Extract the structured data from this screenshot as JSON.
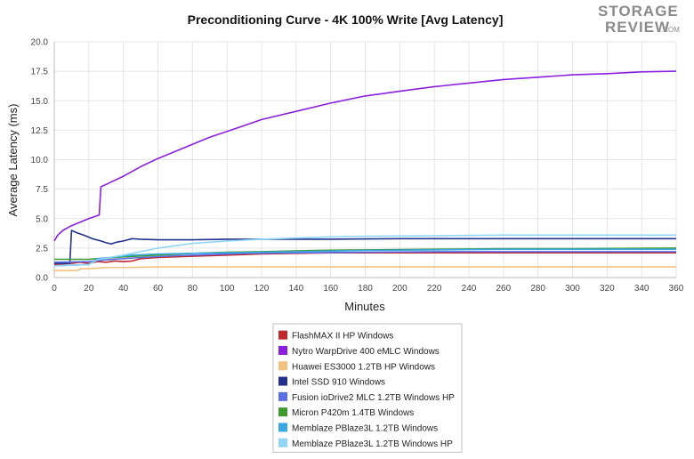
{
  "logo": {
    "line1": "STORAGE",
    "line2": "REVIEW",
    "suffix": ".COM"
  },
  "chart_data": {
    "type": "line",
    "title": "Preconditioning Curve - 4K 100% Write [Avg Latency]",
    "xlabel": "Minutes",
    "ylabel": "Average Latency (ms)",
    "xlim": [
      0,
      360
    ],
    "ylim": [
      0,
      20
    ],
    "xticks": [
      0,
      20,
      40,
      60,
      80,
      100,
      120,
      140,
      160,
      180,
      200,
      220,
      240,
      260,
      280,
      300,
      320,
      340,
      360
    ],
    "yticks": [
      0.0,
      2.5,
      5.0,
      7.5,
      10.0,
      12.5,
      15.0,
      17.5,
      20.0
    ],
    "grid": true,
    "legend_position": "bottom",
    "series": [
      {
        "name": "FlashMAX II HP Windows",
        "color": "#c0282d",
        "points": [
          [
            0,
            1.1
          ],
          [
            10,
            1.2
          ],
          [
            15,
            1.3
          ],
          [
            20,
            1.2
          ],
          [
            25,
            1.35
          ],
          [
            30,
            1.3
          ],
          [
            35,
            1.4
          ],
          [
            40,
            1.35
          ],
          [
            45,
            1.4
          ],
          [
            50,
            1.6
          ],
          [
            60,
            1.7
          ],
          [
            80,
            1.8
          ],
          [
            100,
            1.9
          ],
          [
            120,
            2.0
          ],
          [
            140,
            2.05
          ],
          [
            160,
            2.1
          ],
          [
            180,
            2.1
          ],
          [
            200,
            2.1
          ],
          [
            240,
            2.1
          ],
          [
            280,
            2.1
          ],
          [
            320,
            2.1
          ],
          [
            360,
            2.1
          ]
        ]
      },
      {
        "name": "Nytro WarpDrive 400 eMLC Windows",
        "color": "#8b1fe0",
        "points": [
          [
            0,
            3.1
          ],
          [
            2,
            3.6
          ],
          [
            5,
            4.0
          ],
          [
            10,
            4.4
          ],
          [
            15,
            4.7
          ],
          [
            20,
            5.0
          ],
          [
            26,
            5.3
          ],
          [
            27,
            7.7
          ],
          [
            30,
            7.9
          ],
          [
            40,
            8.6
          ],
          [
            50,
            9.4
          ],
          [
            60,
            10.1
          ],
          [
            70,
            10.7
          ],
          [
            80,
            11.3
          ],
          [
            90,
            11.9
          ],
          [
            100,
            12.4
          ],
          [
            110,
            12.9
          ],
          [
            120,
            13.4
          ],
          [
            140,
            14.1
          ],
          [
            160,
            14.8
          ],
          [
            180,
            15.4
          ],
          [
            200,
            15.8
          ],
          [
            220,
            16.2
          ],
          [
            240,
            16.5
          ],
          [
            260,
            16.8
          ],
          [
            280,
            17.0
          ],
          [
            300,
            17.2
          ],
          [
            320,
            17.3
          ],
          [
            340,
            17.45
          ],
          [
            360,
            17.5
          ]
        ]
      },
      {
        "name": "Huawei ES3000 1.2TB HP Windows",
        "color": "#f2c283",
        "points": [
          [
            0,
            0.6
          ],
          [
            14,
            0.6
          ],
          [
            15,
            0.75
          ],
          [
            20,
            0.75
          ],
          [
            25,
            0.8
          ],
          [
            30,
            0.85
          ],
          [
            40,
            0.85
          ],
          [
            60,
            0.9
          ],
          [
            100,
            0.9
          ],
          [
            150,
            0.9
          ],
          [
            200,
            0.9
          ],
          [
            250,
            0.9
          ],
          [
            300,
            0.9
          ],
          [
            360,
            0.9
          ]
        ]
      },
      {
        "name": "Intel SSD 910 Windows",
        "color": "#22318f",
        "points": [
          [
            0,
            1.2
          ],
          [
            5,
            1.2
          ],
          [
            9,
            1.2
          ],
          [
            10,
            4.0
          ],
          [
            13,
            3.8
          ],
          [
            17,
            3.6
          ],
          [
            22,
            3.3
          ],
          [
            27,
            3.1
          ],
          [
            30,
            2.95
          ],
          [
            33,
            2.85
          ],
          [
            36,
            3.0
          ],
          [
            40,
            3.1
          ],
          [
            45,
            3.3
          ],
          [
            50,
            3.25
          ],
          [
            60,
            3.2
          ],
          [
            80,
            3.2
          ],
          [
            100,
            3.25
          ],
          [
            120,
            3.25
          ],
          [
            160,
            3.25
          ],
          [
            200,
            3.3
          ],
          [
            240,
            3.3
          ],
          [
            280,
            3.3
          ],
          [
            320,
            3.3
          ],
          [
            360,
            3.3
          ]
        ]
      },
      {
        "name": "Fusion ioDrive2 MLC 1.2TB Windows HP",
        "color": "#5b6fe8",
        "points": [
          [
            0,
            1.3
          ],
          [
            20,
            1.35
          ],
          [
            30,
            1.5
          ],
          [
            50,
            1.7
          ],
          [
            70,
            1.85
          ],
          [
            90,
            1.95
          ],
          [
            110,
            2.05
          ],
          [
            140,
            2.1
          ],
          [
            180,
            2.15
          ],
          [
            220,
            2.2
          ],
          [
            260,
            2.2
          ],
          [
            300,
            2.2
          ],
          [
            360,
            2.2
          ]
        ]
      },
      {
        "name": "Micron P420m 1.4TB Windows",
        "color": "#3e9a2c",
        "points": [
          [
            0,
            1.55
          ],
          [
            20,
            1.55
          ],
          [
            25,
            1.6
          ],
          [
            40,
            1.75
          ],
          [
            60,
            1.9
          ],
          [
            80,
            2.05
          ],
          [
            100,
            2.15
          ],
          [
            120,
            2.2
          ],
          [
            150,
            2.3
          ],
          [
            180,
            2.35
          ],
          [
            220,
            2.4
          ],
          [
            260,
            2.45
          ],
          [
            300,
            2.45
          ],
          [
            360,
            2.5
          ]
        ]
      },
      {
        "name": "Memblaze PBlaze3L 1.2TB Windows",
        "color": "#3aa7e6",
        "points": [
          [
            0,
            1.0
          ],
          [
            20,
            1.1
          ],
          [
            25,
            1.6
          ],
          [
            35,
            1.75
          ],
          [
            45,
            1.9
          ],
          [
            60,
            2.0
          ],
          [
            80,
            2.05
          ],
          [
            100,
            2.1
          ],
          [
            140,
            2.2
          ],
          [
            180,
            2.3
          ],
          [
            220,
            2.35
          ],
          [
            260,
            2.4
          ],
          [
            300,
            2.4
          ],
          [
            360,
            2.4
          ]
        ]
      },
      {
        "name": "Memblaze PBlaze3L 1.2TB Windows HP",
        "color": "#8fd6f7",
        "points": [
          [
            0,
            1.0
          ],
          [
            20,
            1.1
          ],
          [
            25,
            1.5
          ],
          [
            30,
            1.65
          ],
          [
            40,
            1.9
          ],
          [
            50,
            2.2
          ],
          [
            60,
            2.5
          ],
          [
            80,
            2.9
          ],
          [
            100,
            3.1
          ],
          [
            120,
            3.25
          ],
          [
            140,
            3.35
          ],
          [
            160,
            3.45
          ],
          [
            180,
            3.5
          ],
          [
            220,
            3.55
          ],
          [
            260,
            3.6
          ],
          [
            300,
            3.6
          ],
          [
            360,
            3.6
          ]
        ]
      }
    ]
  }
}
